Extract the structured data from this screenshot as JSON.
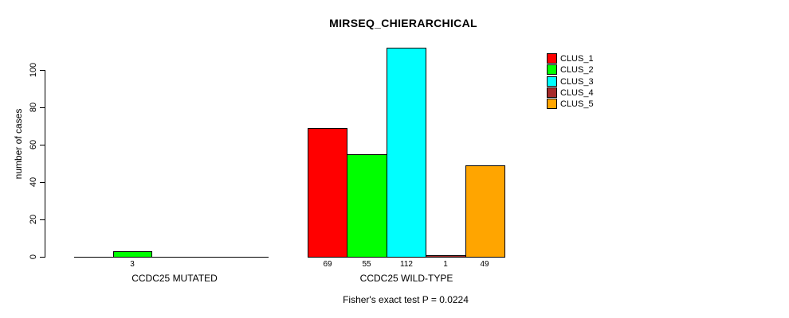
{
  "chart_data": {
    "type": "bar",
    "title": "MIRSEQ_CHIERARCHICAL",
    "ylabel": "number of cases",
    "xlabel": "",
    "yticks": [
      0,
      20,
      40,
      60,
      80,
      100
    ],
    "ylim": [
      0,
      112
    ],
    "grid": false,
    "legend_position": "top-right",
    "categories": [
      "CCDC25 MUTATED",
      "CCDC25 WILD-TYPE"
    ],
    "series": [
      {
        "name": "CLUS_1",
        "color": "#FF0000",
        "values": [
          0,
          69
        ]
      },
      {
        "name": "CLUS_2",
        "color": "#00FF00",
        "values": [
          3,
          55
        ]
      },
      {
        "name": "CLUS_3",
        "color": "#00FFFF",
        "values": [
          0,
          112
        ]
      },
      {
        "name": "CLUS_4",
        "color": "#A52A2A",
        "values": [
          0,
          1
        ]
      },
      {
        "name": "CLUS_5",
        "color": "#FFA500",
        "values": [
          0,
          49
        ]
      }
    ],
    "bar_value_labels_shown": [
      "3",
      "69",
      "55",
      "112",
      "1",
      "49"
    ],
    "footnote": "Fisher's exact test P = 0.0224"
  }
}
